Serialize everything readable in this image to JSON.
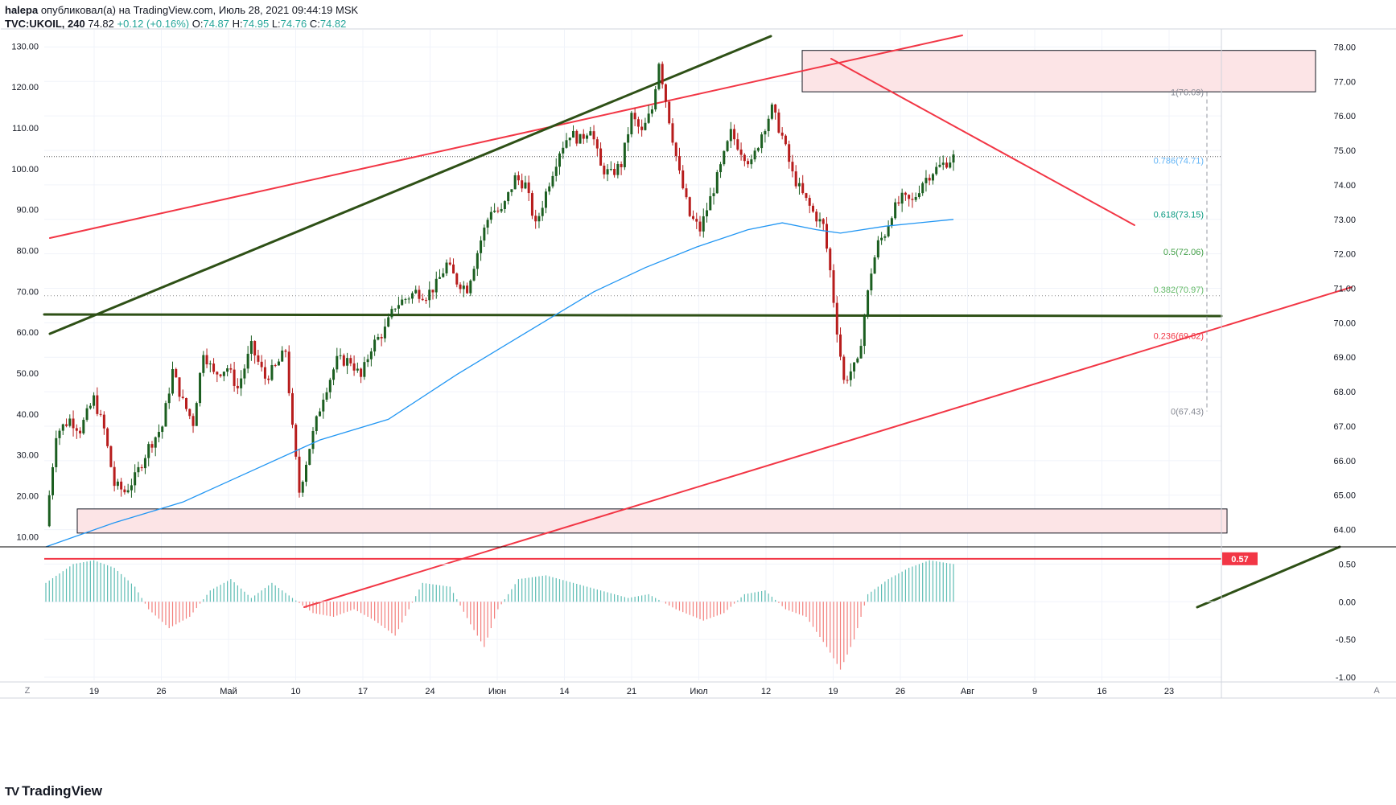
{
  "header": {
    "author": "halepa",
    "published": "опубликовал(а) на TradingView.com, Июль 28, 2021 09:44:19 MSK",
    "symbol": "TVC:UKOIL, 240",
    "last": "74.82",
    "change": "+0.12 (+0.16%)",
    "o_label": "O:",
    "o_value": "74.87",
    "h_label": "H:",
    "h_value": "74.95",
    "l_label": "L:",
    "l_value": "74.76",
    "c_label": "C:",
    "c_value": "74.82"
  },
  "footer": {
    "brand": "TradingView",
    "mark": "TV"
  },
  "colors": {
    "up": "#26a69a",
    "down": "#ef5350",
    "candle_up": "#1b5e20",
    "candle_down": "#b71c1c",
    "ma": "#2196f3",
    "red_line": "#f23645",
    "green_line": "#2e5016",
    "zone_fill": "#fce4e6"
  },
  "chart_data": [
    {
      "type": "candlestick",
      "symbol": "TVC:UKOIL",
      "timeframe": "240",
      "right_axis": {
        "range": [
          63.5,
          78.5
        ],
        "ticks": [
          "64.00",
          "65.00",
          "66.00",
          "67.00",
          "68.00",
          "69.00",
          "70.00",
          "71.00",
          "72.00",
          "73.00",
          "74.00",
          "75.00",
          "76.00",
          "77.00",
          "78.00"
        ]
      },
      "left_axis": {
        "range": [
          7.5,
          134
        ],
        "ticks": [
          "10.00",
          "20.00",
          "30.00",
          "40.00",
          "50.00",
          "60.00",
          "70.00",
          "80.00",
          "90.00",
          "100.00",
          "110.00",
          "120.00",
          "130.00"
        ]
      },
      "x_ticks": [
        "19",
        "26",
        "Май",
        "10",
        "17",
        "24",
        "Июн",
        "14",
        "21",
        "Июл",
        "12",
        "19",
        "26",
        "Авг",
        "9",
        "16",
        "23"
      ],
      "path": [
        [
          0,
          64.1
        ],
        [
          3,
          66.8
        ],
        [
          7,
          67.2
        ],
        [
          10,
          66.9
        ],
        [
          14,
          67.8
        ],
        [
          17,
          66.9
        ],
        [
          20,
          65.3
        ],
        [
          23,
          65.1
        ],
        [
          26,
          65.5
        ],
        [
          30,
          66.4
        ],
        [
          34,
          67.0
        ],
        [
          37,
          68.6
        ],
        [
          40,
          67.7
        ],
        [
          43,
          67.1
        ],
        [
          46,
          69.2
        ],
        [
          49,
          68.5
        ],
        [
          53,
          68.7
        ],
        [
          56,
          68.1
        ],
        [
          60,
          69.3
        ],
        [
          64,
          68.4
        ],
        [
          67,
          68.7
        ],
        [
          70,
          69.2
        ],
        [
          72,
          66.9
        ],
        [
          74,
          65.1
        ],
        [
          77,
          66.4
        ],
        [
          81,
          67.9
        ],
        [
          85,
          68.9
        ],
        [
          89,
          68.9
        ],
        [
          92,
          68.4
        ],
        [
          95,
          69.3
        ],
        [
          99,
          69.8
        ],
        [
          102,
          70.5
        ],
        [
          105,
          70.7
        ],
        [
          108,
          70.9
        ],
        [
          111,
          70.8
        ],
        [
          114,
          71.1
        ],
        [
          117,
          71.7
        ],
        [
          120,
          71.2
        ],
        [
          123,
          71.0
        ],
        [
          127,
          72.4
        ],
        [
          130,
          73.3
        ],
        [
          133,
          73.2
        ],
        [
          137,
          74.2
        ],
        [
          140,
          74.0
        ],
        [
          143,
          72.8
        ],
        [
          147,
          74.1
        ],
        [
          150,
          75.0
        ],
        [
          153,
          75.5
        ],
        [
          156,
          75.3
        ],
        [
          159,
          75.7
        ],
        [
          162,
          74.5
        ],
        [
          165,
          74.3
        ],
        [
          168,
          74.6
        ],
        [
          171,
          76.0
        ],
        [
          174,
          75.5
        ],
        [
          177,
          76.2
        ],
        [
          179,
          77.6
        ],
        [
          182,
          75.9
        ],
        [
          185,
          74.3
        ],
        [
          188,
          73.1
        ],
        [
          191,
          72.7
        ],
        [
          194,
          73.6
        ],
        [
          197,
          74.5
        ],
        [
          200,
          75.5
        ],
        [
          203,
          75.0
        ],
        [
          206,
          74.6
        ],
        [
          209,
          75.5
        ],
        [
          212,
          76.2
        ],
        [
          215,
          75.4
        ],
        [
          218,
          74.3
        ],
        [
          221,
          73.7
        ],
        [
          224,
          73.2
        ],
        [
          227,
          72.8
        ],
        [
          229,
          71.5
        ],
        [
          231,
          69.8
        ],
        [
          233,
          68.3
        ],
        [
          235,
          68.6
        ],
        [
          237,
          68.8
        ],
        [
          239,
          70.2
        ],
        [
          241,
          71.5
        ],
        [
          243,
          72.3
        ],
        [
          245,
          72.6
        ],
        [
          247,
          73.2
        ],
        [
          250,
          73.6
        ],
        [
          253,
          73.5
        ],
        [
          256,
          74.1
        ],
        [
          259,
          74.4
        ],
        [
          262,
          74.6
        ],
        [
          265,
          74.8
        ]
      ],
      "ma": {
        "color": "#2196f3",
        "values": [
          [
            0,
            63.5
          ],
          [
            20,
            64.2
          ],
          [
            40,
            64.8
          ],
          [
            60,
            65.7
          ],
          [
            80,
            66.6
          ],
          [
            100,
            67.2
          ],
          [
            120,
            68.5
          ],
          [
            140,
            69.7
          ],
          [
            160,
            70.9
          ],
          [
            175,
            71.6
          ],
          [
            190,
            72.2
          ],
          [
            205,
            72.7
          ],
          [
            215,
            72.9
          ],
          [
            225,
            72.7
          ],
          [
            232,
            72.6
          ],
          [
            245,
            72.8
          ],
          [
            265,
            73.0
          ]
        ]
      },
      "fibonacci": [
        {
          "label": "1(76.69)",
          "price": 76.69,
          "color": "#868993"
        },
        {
          "label": "0.786(74.71)",
          "price": 74.71,
          "color": "#64b5f6"
        },
        {
          "label": "0.618(73.15)",
          "price": 73.15,
          "color": "#089981"
        },
        {
          "label": "0.5(72.06)",
          "price": 72.06,
          "color": "#43a047"
        },
        {
          "label": "0.382(70.97)",
          "price": 70.97,
          "color": "#66bb6a"
        },
        {
          "label": "0.236(69.62)",
          "price": 69.62,
          "color": "#f23645"
        },
        {
          "label": "0(67.43)",
          "price": 67.43,
          "color": "#868993"
        }
      ],
      "zones": [
        {
          "from": 76.7,
          "to": 77.9,
          "label": "resistance zone"
        },
        {
          "from": 63.9,
          "to": 64.6,
          "label": "support zone"
        }
      ],
      "price_line": 74.82
    },
    {
      "type": "bar",
      "name": "oscillator",
      "y_ticks": [
        "0.50",
        "0.00",
        "-0.50",
        "-1.00"
      ],
      "ylim": [
        -1.0,
        0.6
      ],
      "marker": {
        "label": "0.57",
        "value": 0.57
      },
      "values": [
        [
          0,
          0.25
        ],
        [
          8,
          0.5
        ],
        [
          14,
          0.55
        ],
        [
          20,
          0.45
        ],
        [
          26,
          0.2
        ],
        [
          30,
          -0.1
        ],
        [
          36,
          -0.35
        ],
        [
          42,
          -0.2
        ],
        [
          48,
          0.15
        ],
        [
          54,
          0.3
        ],
        [
          60,
          0.05
        ],
        [
          66,
          0.25
        ],
        [
          72,
          0.05
        ],
        [
          78,
          -0.15
        ],
        [
          84,
          -0.2
        ],
        [
          90,
          -0.1
        ],
        [
          96,
          -0.25
        ],
        [
          102,
          -0.45
        ],
        [
          106,
          -0.1
        ],
        [
          110,
          0.25
        ],
        [
          118,
          0.2
        ],
        [
          124,
          -0.3
        ],
        [
          128,
          -0.6
        ],
        [
          132,
          -0.1
        ],
        [
          138,
          0.3
        ],
        [
          146,
          0.35
        ],
        [
          154,
          0.25
        ],
        [
          162,
          0.15
        ],
        [
          170,
          0.05
        ],
        [
          176,
          0.1
        ],
        [
          184,
          -0.1
        ],
        [
          192,
          -0.25
        ],
        [
          198,
          -0.15
        ],
        [
          204,
          0.1
        ],
        [
          210,
          0.15
        ],
        [
          216,
          -0.1
        ],
        [
          222,
          -0.2
        ],
        [
          228,
          -0.6
        ],
        [
          232,
          -0.9
        ],
        [
          236,
          -0.5
        ],
        [
          240,
          0.1
        ],
        [
          246,
          0.3
        ],
        [
          252,
          0.45
        ],
        [
          258,
          0.55
        ],
        [
          265,
          0.5
        ]
      ]
    }
  ]
}
